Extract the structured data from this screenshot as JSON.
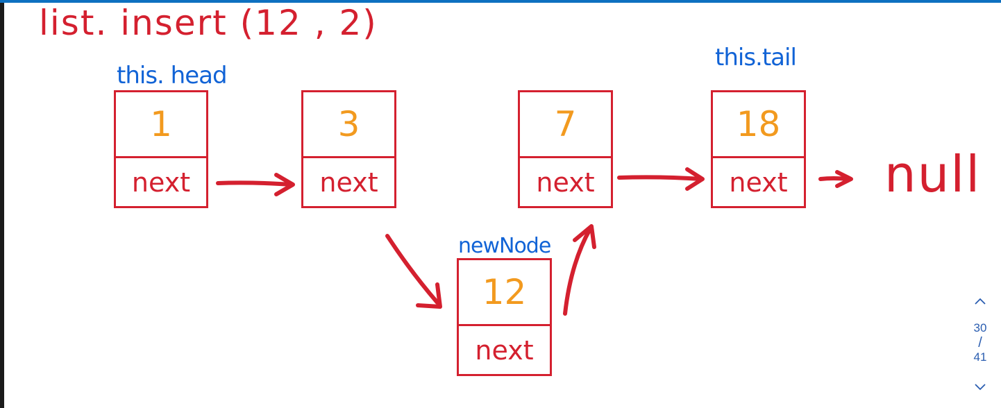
{
  "title": "list. insert (12 , 2)",
  "labels": {
    "head": "this. head",
    "tail": "this.tail",
    "new_node": "newNode"
  },
  "nodes": [
    {
      "value": "1",
      "next": "next"
    },
    {
      "value": "3",
      "next": "next"
    },
    {
      "value": "7",
      "next": "next"
    },
    {
      "value": "18",
      "next": "next"
    }
  ],
  "new_node": {
    "value": "12",
    "next": "next"
  },
  "null_label": "null",
  "pager": {
    "current": "30",
    "separator": "/",
    "total": "41"
  },
  "colors": {
    "ink_red": "#d4202f",
    "value_orange": "#f29a1f",
    "label_blue": "#1163d6",
    "accent_bar": "#0e70c0"
  }
}
